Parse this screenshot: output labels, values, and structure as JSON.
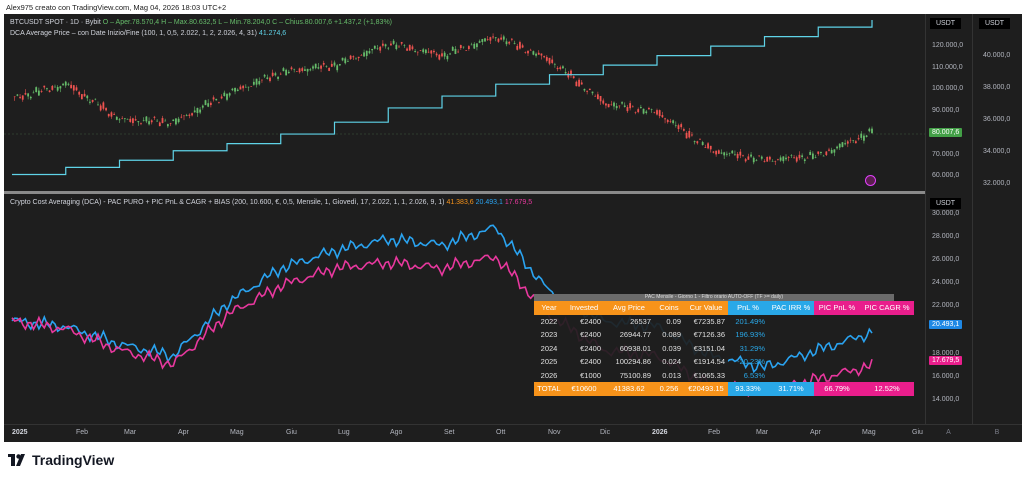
{
  "header": {
    "text": "Alex975 creato con TradingView.com, Mag 04, 2026 18:03 UTC+2"
  },
  "top_legend": {
    "symbol": "BTCUSDT SPOT · 1D · Bybit",
    "ohlc": "O – Aper.78.570,4  H – Max.80.632,5  L – Min.78.204,0  C – Chius.80.007,6",
    "change": "+1.437,2 (+1,83%)",
    "indicator": "DCA Average Price – con Date Inizio/Fine (100, 1, 0,5, 2.022, 1, 2, 2.026, 4, 31)",
    "indicator_value": "41.274,6"
  },
  "bot_legend": {
    "indicator": "Crypto Cost Averaging (DCA) - PAC PURO + PIC PnL & CAGR + BIAS (200, 10.600, €, 0,5, Mensile, 1, Giovedì, 17, 2.022, 1, 1, 2.026, 9, 1)",
    "v1": "41.383,6",
    "v2": "20.493,1",
    "v3": "17.679,5"
  },
  "axis": {
    "usdt": "USDT",
    "top_ticks": [
      "120.000,0",
      "110.000,0",
      "100.000,0",
      "90.000,0",
      "70.000,0",
      "60.000,0"
    ],
    "price_tag": "80.007,6",
    "axis2_ticks": [
      "40.000,0",
      "38.000,0",
      "36.000,0",
      "34.000,0",
      "32.000,0"
    ],
    "bot_ticks": [
      "30.000,0",
      "28.000,0",
      "26.000,0",
      "24.000,0",
      "22.000,0",
      "18.000,0",
      "16.000,0",
      "14.000,0"
    ],
    "bot_tag_blue": "20.493,1",
    "bot_tag_pink": "17.679,5",
    "corner_a": "A",
    "corner_b": "B"
  },
  "time_axis": [
    "2025",
    "Feb",
    "Mar",
    "Apr",
    "Mag",
    "Giu",
    "Lug",
    "Ago",
    "Set",
    "Ott",
    "Nov",
    "Dic",
    "2026",
    "Feb",
    "Mar",
    "Apr",
    "Mag",
    "Giu"
  ],
  "table": {
    "title": "PAC Mensile - Giorno 1 - Filtro orario AUTO-OFF (TF >= daily)",
    "headers": [
      "Year",
      "Invested",
      "Avg Price",
      "Coins",
      "Cur Value",
      "PnL %",
      "PAC IRR %",
      "PIC PnL %",
      "PIC CAGR %"
    ],
    "rows": [
      [
        "2022",
        "€2400",
        "26537",
        "0.09",
        "€7235.87",
        "201.49%",
        "",
        "",
        ""
      ],
      [
        "2023",
        "€2400",
        "26944.77",
        "0.089",
        "€7126.36",
        "196.93%",
        "",
        "",
        ""
      ],
      [
        "2024",
        "€2400",
        "60938.01",
        "0.039",
        "€3151.04",
        "31.29%",
        "",
        "",
        ""
      ],
      [
        "2025",
        "€2400",
        "100294.86",
        "0.024",
        "€1914.54",
        "-20.23%",
        "",
        "",
        ""
      ],
      [
        "2026",
        "€1000",
        "75100.89",
        "0.013",
        "€1065.33",
        "6.53%",
        "",
        "",
        ""
      ]
    ],
    "total": [
      "TOTAL",
      "€10600",
      "41383.62",
      "0.256",
      "€20493.15",
      "93.33%",
      "31.71%",
      "66.79%",
      "12.52%"
    ]
  },
  "footer": {
    "brand": "TradingView"
  },
  "colors": {
    "candles_up": "#66bb6a",
    "candles_down": "#ef5350",
    "dca_line": "#5fd3e8",
    "blue_line": "#2aa3f0",
    "pink_line": "#e8389e",
    "orange": "#f7931a",
    "magenta": "#e91e8c"
  },
  "chart_data": [
    {
      "type": "line",
      "title": "",
      "x": [
        "2025",
        "Feb",
        "Mar",
        "Apr",
        "Mag",
        "Giu",
        "Lug",
        "Ago",
        "Set",
        "Ott",
        "Nov",
        "Dic",
        "2026",
        "Feb",
        "Mar",
        "Apr",
        "Mag"
      ],
      "series": [
        {
          "name": "",
          "values": [
            94000,
            100000,
            85000,
            84000,
            96000,
            105000,
            108000,
            117000,
            112000,
            120000,
            110000,
            92000,
            88000,
            72000,
            68000,
            70000,
            80000
          ]
        },
        {
          "name": "",
          "values": [
            62000,
            65000,
            68000,
            72000,
            75000,
            79000,
            84000,
            90000,
            95000,
            100000,
            104000,
            108000,
            112000,
            116000,
            120000,
            124000,
            127000
          ]
        }
      ],
      "ylim": [
        58000,
        127000
      ]
    },
    {
      "type": "line",
      "title": "",
      "x": [
        "2025",
        "Feb",
        "Mar",
        "Apr",
        "Mag",
        "Giu",
        "Lug",
        "Ago",
        "Set",
        "Ott",
        "Nov",
        "Dic",
        "2026",
        "Feb",
        "Mar",
        "Apr",
        "Mag"
      ],
      "series": [
        {
          "name": "",
          "values": [
            21500,
            21000,
            19500,
            18500,
            23000,
            26000,
            27500,
            28500,
            28000,
            29500,
            24000,
            21500,
            21000,
            18500,
            17500,
            19000,
            20493
          ]
        },
        {
          "name": "",
          "values": [
            21500,
            20800,
            19000,
            17800,
            22000,
            24500,
            26000,
            26500,
            26000,
            27000,
            22000,
            19000,
            18500,
            16000,
            15500,
            16500,
            17679
          ]
        }
      ],
      "ylim": [
        13000,
        31000
      ]
    }
  ]
}
